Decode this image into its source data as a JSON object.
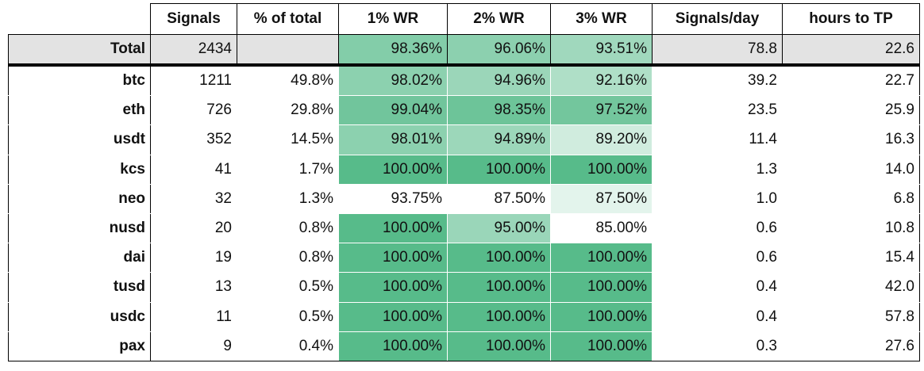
{
  "table": {
    "header": [
      "Signals",
      "% of total",
      "1% WR",
      "2% WR",
      "3% WR",
      "Signals/day",
      "hours to TP"
    ],
    "total": [
      "Total",
      "2434",
      null,
      "98.36%",
      "96.06%",
      "93.51%",
      "78.8",
      "22.6"
    ],
    "rows": [
      [
        "btc",
        "1211",
        "49.8%",
        "98.02%",
        "94.96%",
        "92.16%",
        "39.2",
        "22.7"
      ],
      [
        "eth",
        "726",
        "29.8%",
        "99.04%",
        "98.35%",
        "97.52%",
        "23.5",
        "25.9"
      ],
      [
        "usdt",
        "352",
        "14.5%",
        "98.01%",
        "94.89%",
        "89.20%",
        "11.4",
        "16.3"
      ],
      [
        "kcs",
        "41",
        "1.7%",
        "100.00%",
        "100.00%",
        "100.00%",
        "1.3",
        "14.0"
      ],
      [
        "neo",
        "32",
        "1.3%",
        "93.75%",
        "87.50%",
        "87.50%",
        "1.0",
        "6.8"
      ],
      [
        "nusd",
        "20",
        "0.8%",
        "100.00%",
        "95.00%",
        "85.00%",
        "0.6",
        "10.8"
      ],
      [
        "dai",
        "19",
        "0.8%",
        "100.00%",
        "100.00%",
        "100.00%",
        "0.6",
        "15.4"
      ],
      [
        "tusd",
        "13",
        "0.5%",
        "100.00%",
        "100.00%",
        "100.00%",
        "0.4",
        "42.0"
      ],
      [
        "usdc",
        "11",
        "0.5%",
        "100.00%",
        "100.00%",
        "100.00%",
        "0.4",
        "57.8"
      ],
      [
        "pax",
        "9",
        "0.4%",
        "100.00%",
        "100.00%",
        "100.00%",
        "0.3",
        "27.6"
      ]
    ]
  }
}
